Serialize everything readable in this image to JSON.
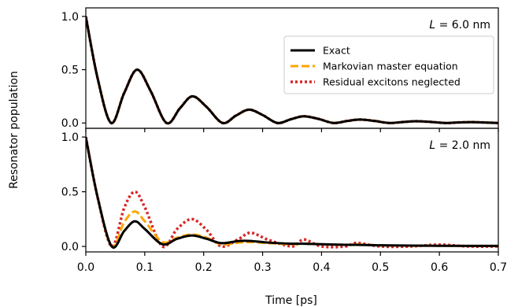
{
  "figure": {
    "ylabel": "Resonator population",
    "xlabel": "Time [ps]"
  },
  "legend": {
    "location": "upper right of top panel",
    "entries": [
      {
        "label": "Exact",
        "color": "#000000",
        "style": "solid"
      },
      {
        "label": "Markovian master equation",
        "color": "#FFA500",
        "style": "dashed"
      },
      {
        "label": "Residual excitons neglected",
        "color": "#D62728",
        "style": "dotted"
      }
    ]
  },
  "chart_data": [
    {
      "type": "line",
      "annotation_prefix": "L",
      "annotation_value": " = 6.0 nm",
      "xlim": [
        0.0,
        0.7
      ],
      "ylim": [
        -0.05,
        1.08
      ],
      "xticks": [
        "0.0",
        "0.1",
        "0.2",
        "0.3",
        "0.4",
        "0.5",
        "0.6",
        "0.7"
      ],
      "yticks": [
        "0.0",
        "0.5",
        "1.0"
      ],
      "grid": false,
      "x": [
        0.0,
        0.02,
        0.043,
        0.065,
        0.087,
        0.11,
        0.137,
        0.16,
        0.181,
        0.205,
        0.232,
        0.255,
        0.277,
        0.3,
        0.325,
        0.348,
        0.37,
        0.395,
        0.42,
        0.443,
        0.465,
        0.49,
        0.515,
        0.538,
        0.56,
        0.585,
        0.61,
        0.633,
        0.655,
        0.68,
        0.7
      ],
      "series": [
        {
          "name": "Exact",
          "values": [
            1.0,
            0.42,
            0.0,
            0.28,
            0.5,
            0.3,
            0.0,
            0.14,
            0.25,
            0.15,
            0.0,
            0.07,
            0.125,
            0.075,
            0.0,
            0.035,
            0.063,
            0.038,
            0.0,
            0.018,
            0.032,
            0.019,
            0.0,
            0.009,
            0.016,
            0.01,
            0.0,
            0.005,
            0.008,
            0.004,
            0.0
          ]
        },
        {
          "name": "Markovian master equation",
          "values": [
            1.0,
            0.42,
            0.0,
            0.28,
            0.5,
            0.3,
            0.0,
            0.14,
            0.25,
            0.15,
            0.0,
            0.07,
            0.125,
            0.075,
            0.0,
            0.035,
            0.063,
            0.038,
            0.0,
            0.018,
            0.032,
            0.019,
            0.0,
            0.009,
            0.016,
            0.01,
            0.0,
            0.005,
            0.008,
            0.004,
            0.0
          ]
        },
        {
          "name": "Residual excitons neglected",
          "values": [
            1.0,
            0.42,
            0.0,
            0.28,
            0.5,
            0.3,
            0.0,
            0.14,
            0.25,
            0.15,
            0.0,
            0.07,
            0.125,
            0.075,
            0.0,
            0.035,
            0.063,
            0.038,
            0.0,
            0.018,
            0.032,
            0.019,
            0.0,
            0.009,
            0.016,
            0.01,
            0.0,
            0.005,
            0.008,
            0.004,
            0.0
          ]
        }
      ]
    },
    {
      "type": "line",
      "annotation_prefix": "L",
      "annotation_value": " = 2.0 nm",
      "xlim": [
        0.0,
        0.7
      ],
      "ylim": [
        -0.05,
        1.08
      ],
      "xticks": [
        "0.0",
        "0.1",
        "0.2",
        "0.3",
        "0.4",
        "0.5",
        "0.6",
        "0.7"
      ],
      "yticks": [
        "0.0",
        "0.5",
        "1.0"
      ],
      "grid": false,
      "x": [
        0.0,
        0.02,
        0.044,
        0.065,
        0.083,
        0.1,
        0.13,
        0.155,
        0.18,
        0.205,
        0.23,
        0.26,
        0.28,
        0.31,
        0.35,
        0.37,
        0.4,
        0.44,
        0.46,
        0.5,
        0.55,
        0.6,
        0.65,
        0.7
      ],
      "series": [
        {
          "name": "Exact",
          "values": [
            1.0,
            0.45,
            0.0,
            0.14,
            0.23,
            0.16,
            0.02,
            0.07,
            0.1,
            0.07,
            0.03,
            0.05,
            0.05,
            0.035,
            0.025,
            0.025,
            0.02,
            0.015,
            0.015,
            0.01,
            0.008,
            0.006,
            0.005,
            0.005
          ]
        },
        {
          "name": "Markovian master equation",
          "values": [
            1.0,
            0.45,
            0.0,
            0.22,
            0.32,
            0.23,
            0.04,
            0.08,
            0.11,
            0.08,
            0.02,
            0.035,
            0.04,
            0.03,
            0.02,
            0.025,
            0.02,
            0.015,
            0.018,
            0.01,
            0.007,
            0.006,
            0.005,
            0.005
          ]
        },
        {
          "name": "Residual excitons neglected",
          "values": [
            1.0,
            0.45,
            0.0,
            0.35,
            0.5,
            0.36,
            0.0,
            0.16,
            0.25,
            0.15,
            0.0,
            0.07,
            0.125,
            0.06,
            0.0,
            0.063,
            0.0,
            0.0,
            0.032,
            0.0,
            0.0,
            0.016,
            0.0,
            0.0
          ]
        }
      ]
    }
  ]
}
